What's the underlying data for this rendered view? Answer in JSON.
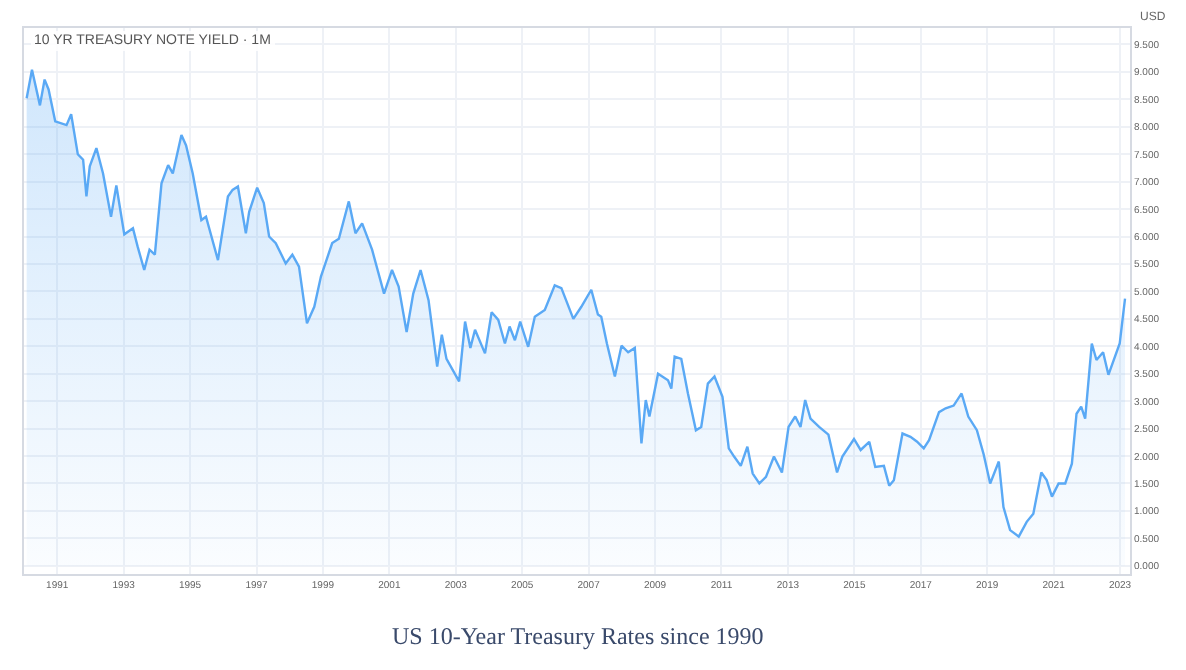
{
  "chart_data": {
    "type": "area",
    "title": "10 YR TREASURY NOTE YIELD · 1M",
    "ylabel": "USD",
    "annotations": [
      "US 10-Year Treasury Rates since 1990"
    ],
    "x": [
      1990.08,
      1990.24,
      1990.48,
      1990.62,
      1990.74,
      1990.94,
      1991.28,
      1991.42,
      1991.62,
      1991.78,
      1991.88,
      1991.98,
      1992.18,
      1992.38,
      1992.62,
      1992.78,
      1993.02,
      1993.28,
      1993.42,
      1993.62,
      1993.78,
      1993.94,
      1994.14,
      1994.34,
      1994.48,
      1994.74,
      1994.88,
      1995.08,
      1995.34,
      1995.48,
      1995.84,
      1996.14,
      1996.28,
      1996.44,
      1996.68,
      1996.78,
      1997.02,
      1997.22,
      1997.38,
      1997.58,
      1997.88,
      1998.08,
      1998.28,
      1998.52,
      1998.74,
      1998.94,
      1999.28,
      1999.48,
      1999.78,
      1999.98,
      2000.18,
      2000.48,
      2000.84,
      2001.08,
      2001.28,
      2001.52,
      2001.72,
      2001.94,
      2002.18,
      2002.44,
      2002.58,
      2002.72,
      2003.1,
      2003.28,
      2003.44,
      2003.58,
      2003.88,
      2004.08,
      2004.28,
      2004.48,
      2004.62,
      2004.78,
      2004.94,
      2005.18,
      2005.38,
      2005.68,
      2005.98,
      2006.18,
      2006.54,
      2006.78,
      2007.08,
      2007.28,
      2007.38,
      2007.55,
      2007.79,
      2007.99,
      2008.19,
      2008.39,
      2008.59,
      2008.72,
      2008.83,
      2009.09,
      2009.39,
      2009.49,
      2009.59,
      2009.79,
      2009.99,
      2010.23,
      2010.39,
      2010.59,
      2010.79,
      2011.03,
      2011.22,
      2011.38,
      2011.58,
      2011.78,
      2011.94,
      2012.14,
      2012.34,
      2012.58,
      2012.82,
      2013.02,
      2013.22,
      2013.38,
      2013.52,
      2013.68,
      2013.94,
      2014.22,
      2014.48,
      2014.64,
      2014.99,
      2015.19,
      2015.45,
      2015.63,
      2015.89,
      2016.05,
      2016.19,
      2016.45,
      2016.69,
      2016.89,
      2017.09,
      2017.25,
      2017.55,
      2017.75,
      2017.99,
      2018.23,
      2018.43,
      2018.69,
      2018.89,
      2019.09,
      2019.35,
      2019.49,
      2019.69,
      2019.95,
      2020.19,
      2020.39,
      2020.63,
      2020.79,
      2020.95,
      2021.15,
      2021.35,
      2021.55,
      2021.69,
      2021.83,
      2021.95,
      2022.15,
      2022.29,
      2022.49,
      2022.65,
      2022.99,
      2023.15
    ],
    "series": [
      {
        "color": "#5aa9f5",
        "values": [
          8.52,
          9.04,
          8.39,
          8.86,
          8.68,
          8.1,
          8.03,
          8.23,
          7.5,
          7.4,
          6.73,
          7.28,
          7.61,
          7.15,
          6.36,
          6.93,
          6.04,
          6.15,
          5.82,
          5.39,
          5.76,
          5.67,
          6.97,
          7.3,
          7.15,
          7.85,
          7.66,
          7.15,
          6.3,
          6.36,
          5.57,
          6.73,
          6.85,
          6.91,
          6.06,
          6.45,
          6.89,
          6.61,
          6.0,
          5.88,
          5.51,
          5.67,
          5.45,
          4.42,
          4.72,
          5.27,
          5.88,
          5.96,
          6.64,
          6.06,
          6.24,
          5.76,
          4.96,
          5.39,
          5.09,
          4.26,
          4.96,
          5.39,
          4.84,
          3.63,
          4.21,
          3.77,
          3.36,
          4.45,
          3.97,
          4.3,
          3.87,
          4.62,
          4.48,
          4.05,
          4.36,
          4.11,
          4.45,
          3.99,
          4.54,
          4.66,
          5.11,
          5.06,
          4.5,
          4.72,
          5.03,
          4.58,
          4.54,
          4.05,
          3.45,
          4.01,
          3.89,
          3.97,
          2.23,
          3.02,
          2.72,
          3.5,
          3.38,
          3.23,
          3.81,
          3.77,
          3.14,
          2.47,
          2.53,
          3.32,
          3.45,
          3.08,
          2.14,
          1.99,
          1.82,
          2.17,
          1.68,
          1.5,
          1.62,
          1.99,
          1.7,
          2.53,
          2.72,
          2.53,
          3.02,
          2.68,
          2.53,
          2.39,
          1.7,
          1.99,
          2.31,
          2.11,
          2.26,
          1.8,
          1.82,
          1.46,
          1.56,
          2.41,
          2.35,
          2.26,
          2.14,
          2.29,
          2.8,
          2.87,
          2.92,
          3.14,
          2.72,
          2.47,
          2.04,
          1.5,
          1.9,
          1.07,
          0.65,
          0.53,
          0.8,
          0.95,
          1.7,
          1.56,
          1.26,
          1.5,
          1.5,
          1.86,
          2.77,
          2.9,
          2.68,
          4.05,
          3.75,
          3.89,
          3.48,
          4.05,
          4.87
        ]
      }
    ],
    "xlim": [
      1990.0,
      2023.3
    ],
    "xticks": [
      1991,
      1993,
      1995,
      1997,
      1999,
      2001,
      2003,
      2005,
      2007,
      2009,
      2011,
      2013,
      2015,
      2017,
      2019,
      2021,
      2023
    ],
    "ylim": [
      -0.15,
      9.8
    ],
    "yticks": [
      {
        "value": 0,
        "label": "0.000"
      },
      {
        "value": 0.5,
        "label": "0.500"
      },
      {
        "value": 1,
        "label": "1.000"
      },
      {
        "value": 1.5,
        "label": "1.500"
      },
      {
        "value": 2,
        "label": "2.000"
      },
      {
        "value": 2.5,
        "label": "2.500"
      },
      {
        "value": 3,
        "label": "3.000"
      },
      {
        "value": 3.5,
        "label": "3.500"
      },
      {
        "value": 4,
        "label": "4.000"
      },
      {
        "value": 4.5,
        "label": "4.500"
      },
      {
        "value": 5,
        "label": "5.000"
      },
      {
        "value": 5.5,
        "label": "5.500"
      },
      {
        "value": 6,
        "label": "6.000"
      },
      {
        "value": 6.5,
        "label": "6.500"
      },
      {
        "value": 7,
        "label": "7.000"
      },
      {
        "value": 7.5,
        "label": "7.500"
      },
      {
        "value": 8,
        "label": "8.000"
      },
      {
        "value": 8.5,
        "label": "8.500"
      },
      {
        "value": 9,
        "label": "9.000"
      },
      {
        "value": 9.5,
        "label": "9.500"
      }
    ],
    "grid": true,
    "marker": "none",
    "line_style": "solid"
  }
}
